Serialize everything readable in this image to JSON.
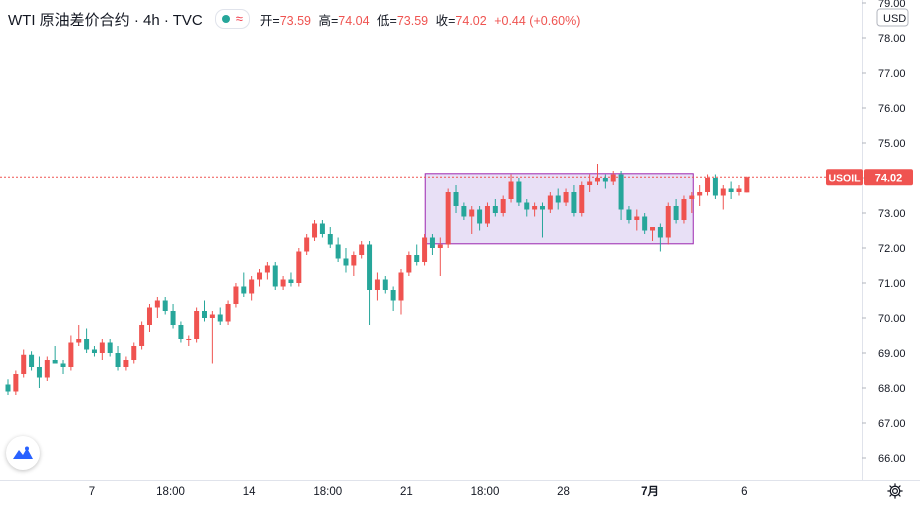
{
  "header": {
    "symbol": "WTI 原油差价合约 · 4h · TVC",
    "approx_icon": "≈",
    "ohlc": [
      {
        "label": "开=",
        "value": "73.59"
      },
      {
        "label": "高=",
        "value": "74.04"
      },
      {
        "label": "低=",
        "value": "73.59"
      },
      {
        "label": "收=",
        "value": "74.02"
      }
    ],
    "change": "+0.44 (+0.60%)"
  },
  "colors": {
    "up": "#ef5350",
    "down": "#26a69a",
    "rect_fill": "#e8e0f6",
    "rect_stroke": "#9c27b0",
    "price_line": "#ef5350"
  },
  "icons": {
    "logo": "tradingview-wave-icon",
    "settings": "gear-icon",
    "market_status": "status-dot-icon"
  },
  "chart_data": {
    "type": "candlestick",
    "timeframe": "4h",
    "currency": "USD",
    "y_range": [
      65.5,
      79.2
    ],
    "y_ticks": [
      "66.00",
      "67.00",
      "68.00",
      "69.00",
      "70.00",
      "71.00",
      "72.00",
      "73.00",
      "74.00",
      "75.00",
      "76.00",
      "77.00",
      "78.00",
      "79.00"
    ],
    "x_ticks": [
      {
        "label": "7",
        "bar": 11
      },
      {
        "label": "18:00",
        "bar": 21
      },
      {
        "label": "14",
        "bar": 31
      },
      {
        "label": "18:00",
        "bar": 41
      },
      {
        "label": "21",
        "bar": 51
      },
      {
        "label": "18:00",
        "bar": 61
      },
      {
        "label": "28",
        "bar": 71
      },
      {
        "label": "7月",
        "bar": 82,
        "bold": true
      },
      {
        "label": "6",
        "bar": 94
      }
    ],
    "last_price": {
      "symbol": "USOIL",
      "value": "74.02",
      "price": 74.02
    },
    "highlight_box": {
      "bar_from": 53.4,
      "bar_to": 87.5,
      "price_high": 74.12,
      "price_low": 72.12
    },
    "candles": [
      [
        68.1,
        68.25,
        67.8,
        67.9
      ],
      [
        67.9,
        68.5,
        67.8,
        68.4
      ],
      [
        68.4,
        69.1,
        68.3,
        68.95
      ],
      [
        68.95,
        69.05,
        68.5,
        68.6
      ],
      [
        68.6,
        68.9,
        68.0,
        68.3
      ],
      [
        68.3,
        68.9,
        68.2,
        68.8
      ],
      [
        68.8,
        69.2,
        68.7,
        68.7
      ],
      [
        68.7,
        68.8,
        68.4,
        68.6
      ],
      [
        68.6,
        69.5,
        68.5,
        69.3
      ],
      [
        69.3,
        69.8,
        69.2,
        69.4
      ],
      [
        69.4,
        69.7,
        69.0,
        69.1
      ],
      [
        69.1,
        69.2,
        68.9,
        69.0
      ],
      [
        69.0,
        69.4,
        68.8,
        69.3
      ],
      [
        69.3,
        69.4,
        68.9,
        69.0
      ],
      [
        69.0,
        69.2,
        68.5,
        68.6
      ],
      [
        68.6,
        68.9,
        68.5,
        68.8
      ],
      [
        68.8,
        69.3,
        68.7,
        69.2
      ],
      [
        69.2,
        69.9,
        69.1,
        69.8
      ],
      [
        69.8,
        70.4,
        69.6,
        70.3
      ],
      [
        70.3,
        70.6,
        70.0,
        70.5
      ],
      [
        70.5,
        70.6,
        70.1,
        70.2
      ],
      [
        70.2,
        70.4,
        69.7,
        69.8
      ],
      [
        69.8,
        69.9,
        69.3,
        69.4
      ],
      [
        69.4,
        69.5,
        69.2,
        69.4
      ],
      [
        69.4,
        70.3,
        69.3,
        70.2
      ],
      [
        70.2,
        70.5,
        69.9,
        70.0
      ],
      [
        70.0,
        70.2,
        68.7,
        70.1
      ],
      [
        70.1,
        70.3,
        69.8,
        69.9
      ],
      [
        69.9,
        70.5,
        69.8,
        70.4
      ],
      [
        70.4,
        71.0,
        70.3,
        70.9
      ],
      [
        70.9,
        71.3,
        70.6,
        70.7
      ],
      [
        70.7,
        71.2,
        70.5,
        71.1
      ],
      [
        71.1,
        71.4,
        70.9,
        71.3
      ],
      [
        71.3,
        71.6,
        71.1,
        71.5
      ],
      [
        71.5,
        71.6,
        70.8,
        70.9
      ],
      [
        70.9,
        71.2,
        70.8,
        71.1
      ],
      [
        71.1,
        71.3,
        70.9,
        71.0
      ],
      [
        71.0,
        72.0,
        70.9,
        71.9
      ],
      [
        71.9,
        72.4,
        71.8,
        72.3
      ],
      [
        72.3,
        72.8,
        72.2,
        72.7
      ],
      [
        72.7,
        72.8,
        72.3,
        72.4
      ],
      [
        72.4,
        72.6,
        72.0,
        72.1
      ],
      [
        72.1,
        72.3,
        71.6,
        71.7
      ],
      [
        71.7,
        72.0,
        71.3,
        71.5
      ],
      [
        71.5,
        71.9,
        71.2,
        71.8
      ],
      [
        71.8,
        72.2,
        71.7,
        72.1
      ],
      [
        72.1,
        72.2,
        69.8,
        70.8
      ],
      [
        70.8,
        71.3,
        70.5,
        71.1
      ],
      [
        71.1,
        71.2,
        70.7,
        70.8
      ],
      [
        70.8,
        70.9,
        70.2,
        70.5
      ],
      [
        70.5,
        71.4,
        70.1,
        71.3
      ],
      [
        71.3,
        71.9,
        71.2,
        71.8
      ],
      [
        71.8,
        72.1,
        71.5,
        71.6
      ],
      [
        71.6,
        72.4,
        71.5,
        72.3
      ],
      [
        72.3,
        72.4,
        71.8,
        72.0
      ],
      [
        72.0,
        72.3,
        71.2,
        72.1
      ],
      [
        72.1,
        73.7,
        72.0,
        73.6
      ],
      [
        73.6,
        73.8,
        73.0,
        73.2
      ],
      [
        73.2,
        73.3,
        72.8,
        72.9
      ],
      [
        72.9,
        73.2,
        72.4,
        73.1
      ],
      [
        73.1,
        73.2,
        72.5,
        72.7
      ],
      [
        72.7,
        73.3,
        72.6,
        73.2
      ],
      [
        73.2,
        73.4,
        72.9,
        73.0
      ],
      [
        73.0,
        73.5,
        72.9,
        73.4
      ],
      [
        73.4,
        74.1,
        73.3,
        73.9
      ],
      [
        73.9,
        74.0,
        73.2,
        73.3
      ],
      [
        73.3,
        73.4,
        72.9,
        73.1
      ],
      [
        73.1,
        73.3,
        72.9,
        73.2
      ],
      [
        73.2,
        73.3,
        72.3,
        73.1
      ],
      [
        73.1,
        73.6,
        73.0,
        73.5
      ],
      [
        73.5,
        73.7,
        73.1,
        73.3
      ],
      [
        73.3,
        73.7,
        73.2,
        73.6
      ],
      [
        73.6,
        73.8,
        72.9,
        73.0
      ],
      [
        73.0,
        73.9,
        72.9,
        73.8
      ],
      [
        73.8,
        74.1,
        73.6,
        73.9
      ],
      [
        73.9,
        74.4,
        73.8,
        74.0
      ],
      [
        74.0,
        74.1,
        73.7,
        73.9
      ],
      [
        73.9,
        74.2,
        73.8,
        74.1
      ],
      [
        74.1,
        74.2,
        72.8,
        73.1
      ],
      [
        73.1,
        73.2,
        72.7,
        72.8
      ],
      [
        72.8,
        73.1,
        72.5,
        72.9
      ],
      [
        72.9,
        73.0,
        72.4,
        72.5
      ],
      [
        72.5,
        72.6,
        72.2,
        72.6
      ],
      [
        72.6,
        72.7,
        71.9,
        72.3
      ],
      [
        72.3,
        73.3,
        72.1,
        73.2
      ],
      [
        73.2,
        73.4,
        72.7,
        72.8
      ],
      [
        72.8,
        73.5,
        72.7,
        73.4
      ],
      [
        73.4,
        73.6,
        73.0,
        73.5
      ],
      [
        73.5,
        73.8,
        73.2,
        73.6
      ],
      [
        73.6,
        74.1,
        73.5,
        74.0
      ],
      [
        74.0,
        74.1,
        73.4,
        73.5
      ],
      [
        73.5,
        73.8,
        73.1,
        73.7
      ],
      [
        73.7,
        73.9,
        73.4,
        73.6
      ],
      [
        73.6,
        73.8,
        73.5,
        73.7
      ],
      [
        73.59,
        74.04,
        73.59,
        74.02
      ]
    ]
  }
}
